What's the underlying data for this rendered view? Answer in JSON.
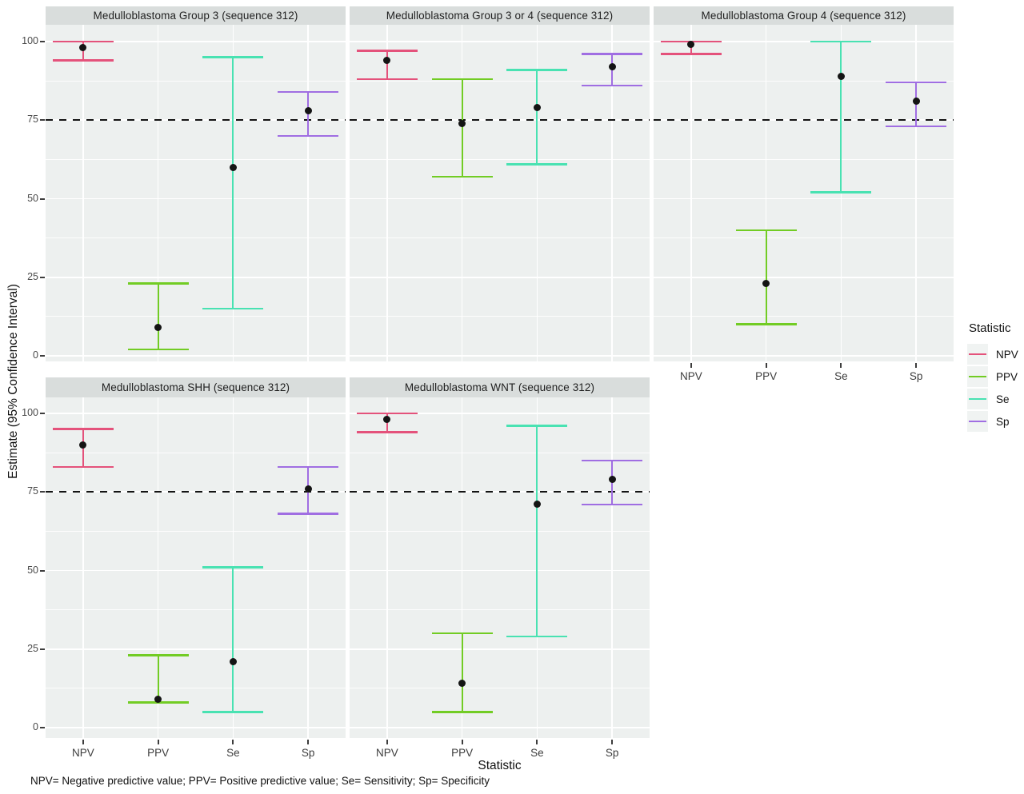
{
  "figure": {
    "y_axis_title": "Estimate (95% Confidence Interval)",
    "x_axis_title": "Statistic",
    "footnote": "NPV= Negative predictive value; PPV= Positive predictive value; Se= Sensitivity; Sp= Specificity"
  },
  "legend": {
    "title": "Statistic",
    "items": [
      {
        "label": "NPV",
        "color": "#E4527B"
      },
      {
        "label": "PPV",
        "color": "#72CC24"
      },
      {
        "label": "Se",
        "color": "#49E2B2"
      },
      {
        "label": "Sp",
        "color": "#A06EE2"
      }
    ]
  },
  "colors": {
    "panel_background": "#EDF0EF",
    "strip_background": "#D9DDDC",
    "gridline": "#FFFFFF",
    "reference_line": "#141414",
    "point": "#141414"
  },
  "chart_data": {
    "type": "errorbar",
    "categories": [
      "NPV",
      "PPV",
      "Se",
      "Sp"
    ],
    "ylim": [
      0,
      100
    ],
    "y_ticks": [
      100,
      75,
      50,
      25,
      0
    ],
    "reference_line_y": 75,
    "xlabel": "Statistic",
    "ylabel": "Estimate (95% Confidence Interval)",
    "legend_position": "right",
    "grid": "on",
    "panels": [
      {
        "title": "Medulloblastoma Group 3 (sequence 312)",
        "series": [
          {
            "stat": "NPV",
            "estimate": 98,
            "lower": 94,
            "upper": 100
          },
          {
            "stat": "PPV",
            "estimate": 9,
            "lower": 2,
            "upper": 23
          },
          {
            "stat": "Se",
            "estimate": 60,
            "lower": 15,
            "upper": 95
          },
          {
            "stat": "Sp",
            "estimate": 78,
            "lower": 70,
            "upper": 84
          }
        ]
      },
      {
        "title": "Medulloblastoma Group 3 or 4 (sequence 312)",
        "series": [
          {
            "stat": "NPV",
            "estimate": 94,
            "lower": 88,
            "upper": 97
          },
          {
            "stat": "PPV",
            "estimate": 74,
            "lower": 57,
            "upper": 88
          },
          {
            "stat": "Se",
            "estimate": 79,
            "lower": 61,
            "upper": 91
          },
          {
            "stat": "Sp",
            "estimate": 92,
            "lower": 86,
            "upper": 96
          }
        ]
      },
      {
        "title": "Medulloblastoma Group 4 (sequence 312)",
        "series": [
          {
            "stat": "NPV",
            "estimate": 99,
            "lower": 96,
            "upper": 100
          },
          {
            "stat": "PPV",
            "estimate": 23,
            "lower": 10,
            "upper": 40
          },
          {
            "stat": "Se",
            "estimate": 89,
            "lower": 52,
            "upper": 100
          },
          {
            "stat": "Sp",
            "estimate": 81,
            "lower": 73,
            "upper": 87
          }
        ]
      },
      {
        "title": "Medulloblastoma SHH (sequence 312)",
        "series": [
          {
            "stat": "NPV",
            "estimate": 90,
            "lower": 83,
            "upper": 95
          },
          {
            "stat": "PPV",
            "estimate": 9,
            "lower": 8,
            "upper": 23
          },
          {
            "stat": "Se",
            "estimate": 21,
            "lower": 5,
            "upper": 51
          },
          {
            "stat": "Sp",
            "estimate": 76,
            "lower": 68,
            "upper": 83
          }
        ]
      },
      {
        "title": "Medulloblastoma WNT (sequence 312)",
        "series": [
          {
            "stat": "NPV",
            "estimate": 98,
            "lower": 94,
            "upper": 100
          },
          {
            "stat": "PPV",
            "estimate": 14,
            "lower": 5,
            "upper": 30
          },
          {
            "stat": "Se",
            "estimate": 71,
            "lower": 29,
            "upper": 96
          },
          {
            "stat": "Sp",
            "estimate": 79,
            "lower": 71,
            "upper": 85
          }
        ]
      }
    ]
  }
}
